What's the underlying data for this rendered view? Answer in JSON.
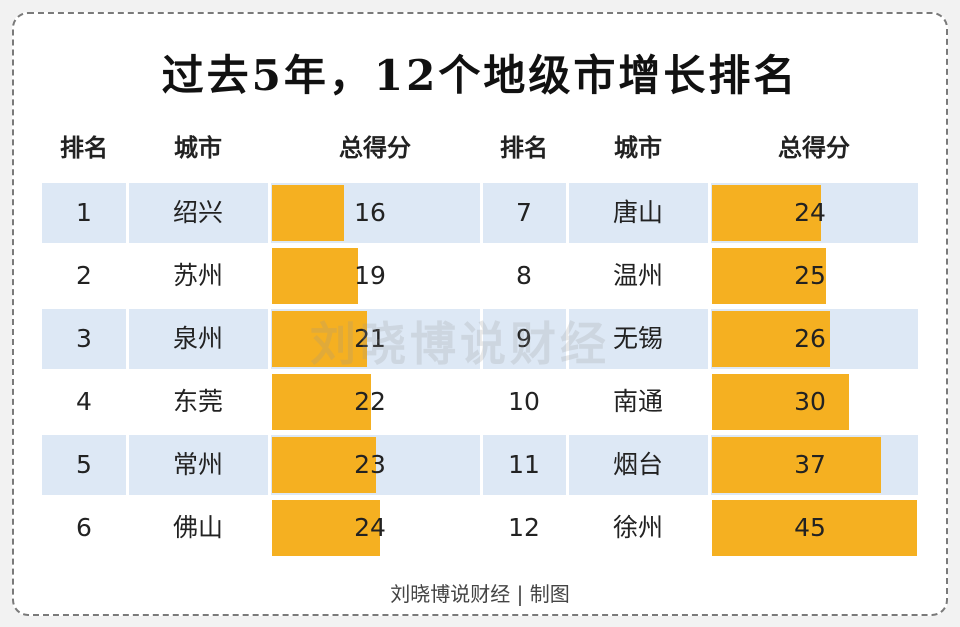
{
  "title": "过去5年，12个地级市增长排名",
  "headers": {
    "rank": "排名",
    "city": "城市",
    "score": "总得分"
  },
  "footer": "刘晓博说财经 | 制图",
  "watermark": "刘晓博说财经",
  "colors": {
    "bar": "#f5b021",
    "band": "#dde8f5"
  },
  "chart_data": {
    "type": "bar",
    "title": "过去5年，12个地级市增长排名",
    "columns": [
      "排名",
      "城市",
      "总得分"
    ],
    "rows": [
      {
        "rank": "1",
        "city": "绍兴",
        "score": 16
      },
      {
        "rank": "2",
        "city": "苏州",
        "score": 19
      },
      {
        "rank": "3",
        "city": "泉州",
        "score": 21
      },
      {
        "rank": "4",
        "city": "东莞",
        "score": 22
      },
      {
        "rank": "5",
        "city": "常州",
        "score": 23
      },
      {
        "rank": "6",
        "city": "佛山",
        "score": 24
      },
      {
        "rank": "7",
        "city": "唐山",
        "score": 24
      },
      {
        "rank": "8",
        "city": "温州",
        "score": 25
      },
      {
        "rank": "9",
        "city": "无锡",
        "score": 26
      },
      {
        "rank": "10",
        "city": "南通",
        "score": 30
      },
      {
        "rank": "11",
        "city": "烟台",
        "score": 37
      },
      {
        "rank": "12",
        "city": "徐州",
        "score": 45
      }
    ],
    "value_max": 45
  }
}
